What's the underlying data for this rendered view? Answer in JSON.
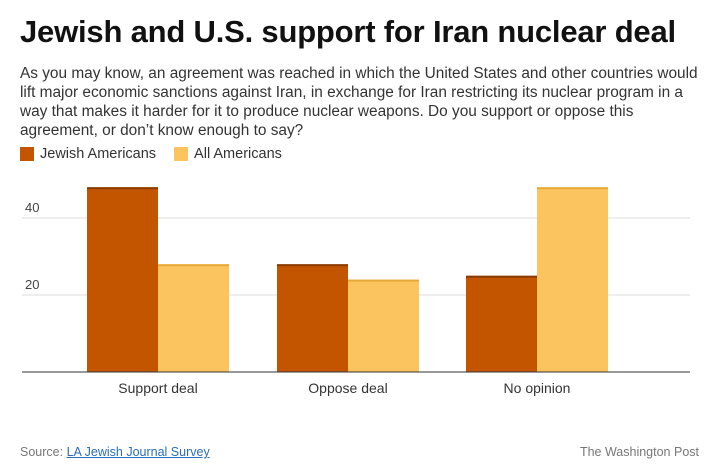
{
  "title": "Jewish and U.S. support for Iran nuclear deal",
  "subtitle": "As you may know, an agreement was reached in which the United States and other countries would lift major economic sanctions against Iran, in exchange for Iran restricting its nuclear program in a way that makes it harder for it to produce nuclear weapons. Do you support or oppose this agreement, or don’t know enough to say?",
  "footer": {
    "source_prefix": "Source: ",
    "source_link": "LA Jewish Journal Survey",
    "credit": "The Washington Post"
  },
  "chart_data": {
    "type": "bar",
    "title": "Jewish and U.S. support for Iran nuclear deal",
    "categories": [
      "Support deal",
      "Oppose deal",
      "No opinion"
    ],
    "series": [
      {
        "name": "Jewish Americans",
        "values": [
          48,
          28,
          25
        ],
        "color": "#c45500"
      },
      {
        "name": "All Americans",
        "values": [
          28,
          24,
          48
        ],
        "color": "#fcc45e"
      }
    ],
    "y_ticks": [
      "20",
      "40"
    ],
    "y_tick_values": [
      20,
      40
    ],
    "ylim": [
      0,
      50
    ],
    "grid": true,
    "legend_position": "top-left"
  }
}
